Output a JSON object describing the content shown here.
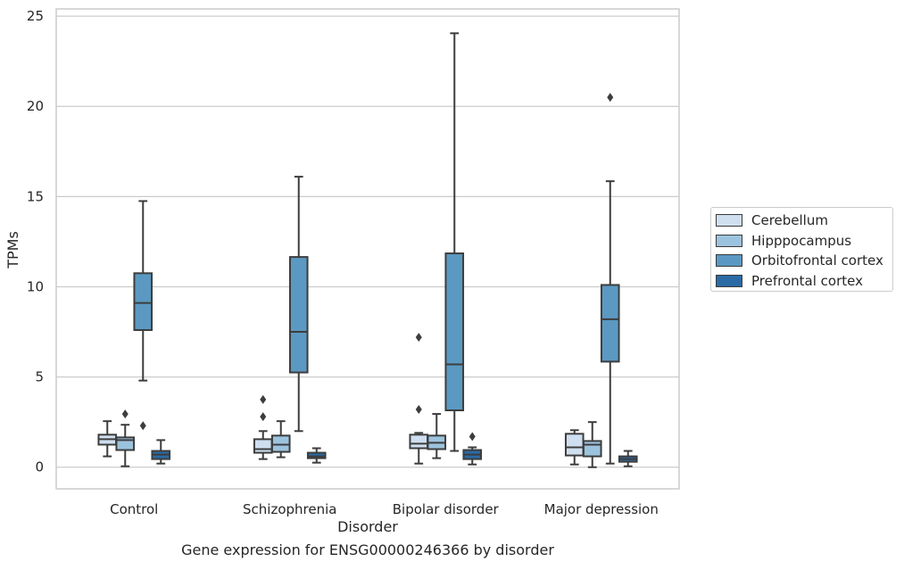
{
  "chart_data": {
    "type": "boxplot",
    "title": "Gene expression for ENSG00000246366 by disorder",
    "xlabel": "Disorder",
    "ylabel": "TPMs",
    "ylim": [
      -1.2,
      25.4
    ],
    "yticks": [
      0,
      5,
      10,
      15,
      20,
      25
    ],
    "grid": true,
    "legend_position": "right",
    "categories": [
      "Control",
      "Schizophrenia",
      "Bipolar disorder",
      "Major depression"
    ],
    "series": [
      {
        "name": "Cerebellum",
        "color": "#cfdff0",
        "boxes": [
          {
            "whislo": 0.6,
            "q1": 1.25,
            "med": 1.55,
            "q3": 1.8,
            "whishi": 2.55,
            "fliers": []
          },
          {
            "whislo": 0.45,
            "q1": 0.8,
            "med": 1.0,
            "q3": 1.55,
            "whishi": 2.0,
            "fliers": [
              2.8,
              3.75
            ]
          },
          {
            "whislo": 0.2,
            "q1": 1.05,
            "med": 1.3,
            "q3": 1.8,
            "whishi": 1.9,
            "fliers": [
              3.2,
              7.2
            ]
          },
          {
            "whislo": 0.15,
            "q1": 0.65,
            "med": 1.1,
            "q3": 1.85,
            "whishi": 2.05,
            "fliers": []
          }
        ]
      },
      {
        "name": "Hipppocampus",
        "color": "#9cc3de",
        "boxes": [
          {
            "whislo": 0.05,
            "q1": 0.95,
            "med": 1.5,
            "q3": 1.65,
            "whishi": 2.35,
            "fliers": [
              2.95
            ]
          },
          {
            "whislo": 0.55,
            "q1": 0.85,
            "med": 1.25,
            "q3": 1.75,
            "whishi": 2.55,
            "fliers": []
          },
          {
            "whislo": 0.5,
            "q1": 1.0,
            "med": 1.35,
            "q3": 1.75,
            "whishi": 2.95,
            "fliers": []
          },
          {
            "whislo": 0.0,
            "q1": 0.6,
            "med": 1.25,
            "q3": 1.45,
            "whishi": 2.5,
            "fliers": []
          }
        ]
      },
      {
        "name": "Orbitofrontal cortex",
        "color": "#5b99c2",
        "boxes": [
          {
            "whislo": 4.8,
            "q1": 7.6,
            "med": 9.1,
            "q3": 10.75,
            "whishi": 14.75,
            "fliers": [
              2.3
            ]
          },
          {
            "whislo": 2.0,
            "q1": 5.25,
            "med": 7.5,
            "q3": 11.65,
            "whishi": 16.1,
            "fliers": []
          },
          {
            "whislo": 0.9,
            "q1": 3.15,
            "med": 5.7,
            "q3": 11.85,
            "whishi": 24.05,
            "fliers": []
          },
          {
            "whislo": 0.2,
            "q1": 5.85,
            "med": 8.2,
            "q3": 10.1,
            "whishi": 15.85,
            "fliers": [
              20.5
            ]
          }
        ]
      },
      {
        "name": "Prefrontal cortex",
        "color": "#2a6aa5",
        "boxes": [
          {
            "whislo": 0.2,
            "q1": 0.45,
            "med": 0.7,
            "q3": 0.9,
            "whishi": 1.5,
            "fliers": []
          },
          {
            "whislo": 0.25,
            "q1": 0.5,
            "med": 0.6,
            "q3": 0.8,
            "whishi": 1.05,
            "fliers": []
          },
          {
            "whislo": 0.15,
            "q1": 0.45,
            "med": 0.7,
            "q3": 0.95,
            "whishi": 1.1,
            "fliers": [
              1.7
            ]
          },
          {
            "whislo": 0.05,
            "q1": 0.3,
            "med": 0.45,
            "q3": 0.6,
            "whishi": 0.9,
            "fliers": []
          }
        ]
      }
    ]
  }
}
